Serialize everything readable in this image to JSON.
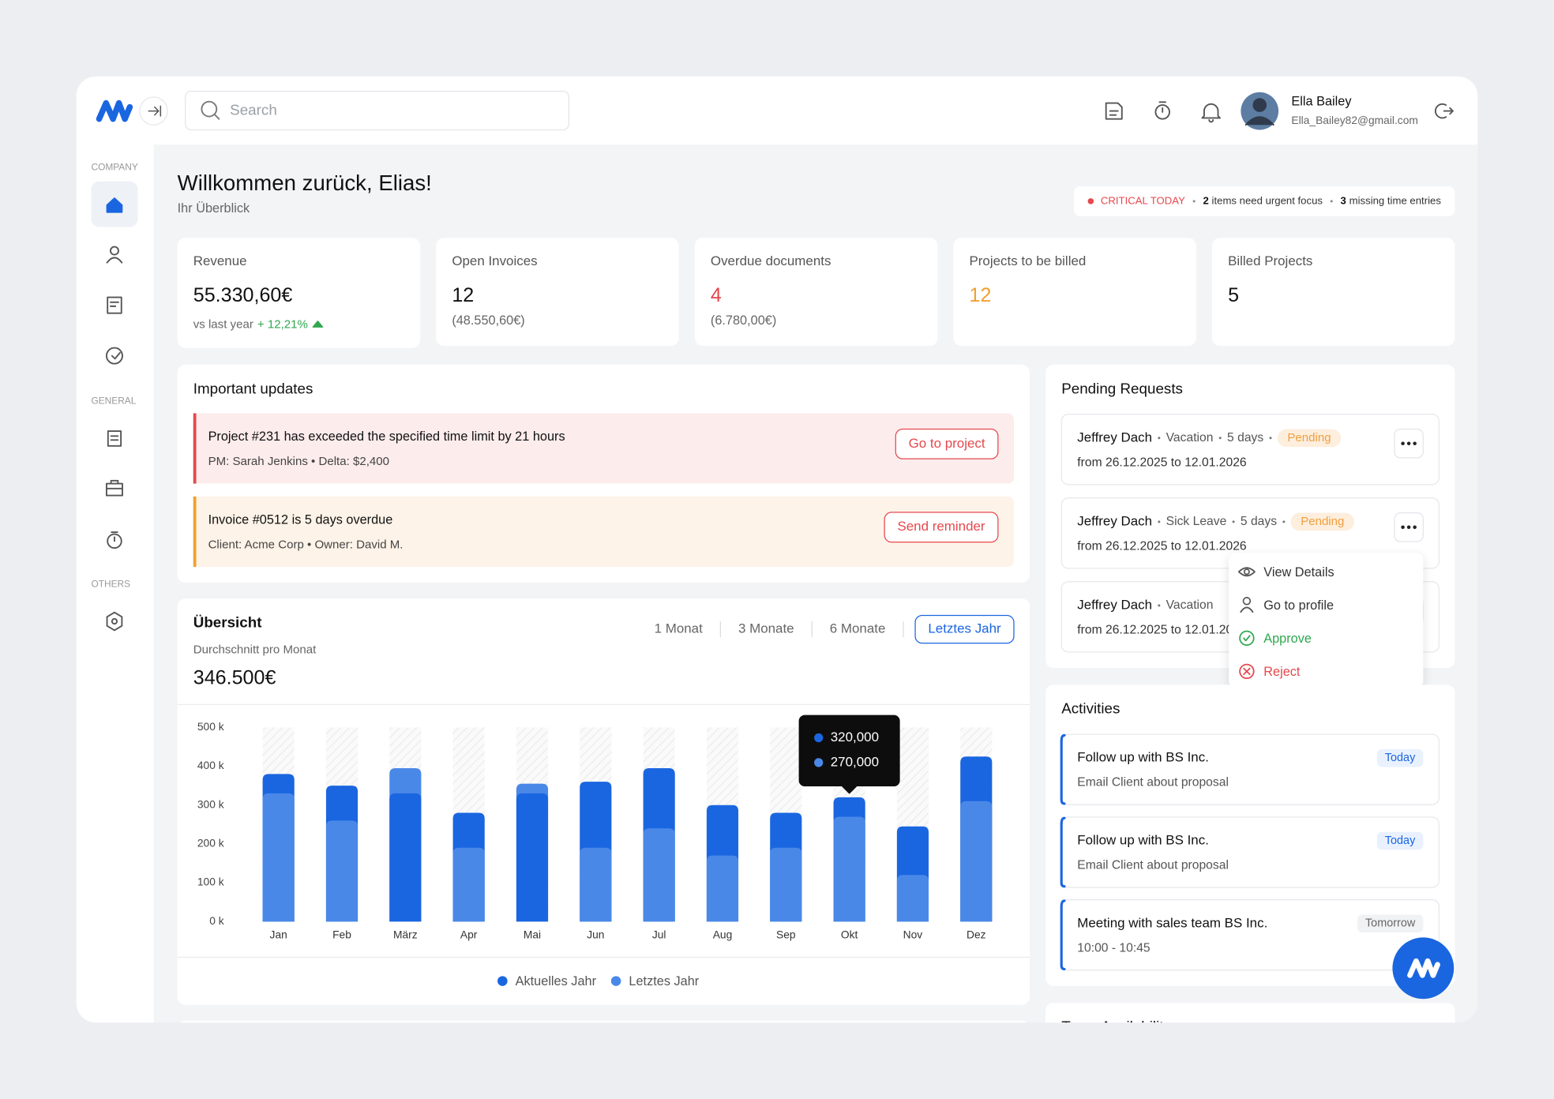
{
  "header": {
    "search_placeholder": "Search",
    "user": {
      "name": "Ella Bailey",
      "email": "Ella_Bailey82@gmail.com"
    }
  },
  "sidebar": {
    "sections": [
      "COMPANY",
      "GENERAL",
      "OTHERS"
    ]
  },
  "welcome": {
    "title": "Willkommen zurück, Elias!",
    "subtitle": "Ihr Überblick"
  },
  "alert_bar": {
    "label": "CRITICAL TODAY",
    "urgent_count": "2",
    "urgent_text": "items need urgent focus",
    "missing_count": "3",
    "missing_text": "missing time entries"
  },
  "kpis": [
    {
      "label": "Revenue",
      "value": "55.330,60€",
      "note": "vs last year",
      "change": "+ 12,21%"
    },
    {
      "label": "Open Invoices",
      "value": "12",
      "sub": "(48.550,60€)"
    },
    {
      "label": "Overdue documents",
      "value": "4",
      "sub": "(6.780,00€)",
      "value_color": "#e5484d"
    },
    {
      "label": "Projects to be billed",
      "value": "12",
      "value_color": "#f0a030"
    },
    {
      "label": "Billed Projects",
      "value": "5"
    }
  ],
  "updates": {
    "title": "Important updates",
    "items": [
      {
        "title": "Project #231 has exceeded the specified time limit by 21 hours",
        "detail": "PM: Sarah Jenkins • Delta: $2,400",
        "action": "Go to project",
        "color": "#e5484d",
        "background": "#fdecec"
      },
      {
        "title": "Invoice #0512 is 5 days overdue",
        "detail": "Client: Acme Corp • Owner: David M.",
        "action": "Send reminder",
        "color": "#f0a030",
        "background": "#fef3e8"
      }
    ]
  },
  "overview": {
    "title": "Übersicht",
    "subtitle": "Durchschnitt pro Monat",
    "value": "346.500€",
    "ranges": [
      {
        "label": "1 Monat"
      },
      {
        "label": "3 Monate"
      },
      {
        "label": "6 Monate"
      },
      {
        "label": "Letztes Jahr",
        "active": true
      }
    ]
  },
  "chart_data": {
    "type": "bar",
    "categories": [
      "Jan",
      "Feb",
      "März",
      "Apr",
      "Mai",
      "Jun",
      "Jul",
      "Aug",
      "Sep",
      "Okt",
      "Nov",
      "Dez"
    ],
    "series": [
      {
        "name": "Aktuelles Jahr",
        "color": "#1a66e0",
        "values": [
          380000,
          350000,
          330000,
          280000,
          330000,
          360000,
          395000,
          300000,
          280000,
          320000,
          245000,
          425000
        ],
        "value_labels": [
          null,
          null,
          null,
          null,
          null,
          null,
          null,
          null,
          null,
          "320,000",
          null,
          null
        ]
      },
      {
        "name": "Letztes Jahr",
        "color": "#4a88e8",
        "values": [
          330000,
          260000,
          395000,
          190000,
          355000,
          190000,
          240000,
          170000,
          190000,
          270000,
          120000,
          310000
        ],
        "value_labels": [
          null,
          null,
          null,
          null,
          null,
          null,
          null,
          null,
          null,
          "270,000",
          null,
          null
        ]
      }
    ],
    "ylim": [
      0,
      500000
    ],
    "yticks": [
      {
        "value": 0,
        "label": "0 k"
      },
      {
        "value": 100000,
        "label": "100 k"
      },
      {
        "value": 200000,
        "label": "200 k"
      },
      {
        "value": 300000,
        "label": "300 k"
      },
      {
        "value": 400000,
        "label": "400 k"
      },
      {
        "value": 500000,
        "label": "500 k"
      }
    ],
    "grid": false
  },
  "pending": {
    "title": "Pending Requests",
    "items": [
      {
        "name": "Jeffrey Dach",
        "type": "Vacation",
        "duration": "5 days",
        "status": "Pending",
        "dates": "from 26.12.2025 to 12.01.2026"
      },
      {
        "name": "Jeffrey Dach",
        "type": "Sick Leave",
        "duration": "5 days",
        "status": "Pending",
        "dates": "from 26.12.2025 to 12.01.2026"
      },
      {
        "name": "Jeffrey Dach",
        "type": "Vacation",
        "dates": "from 26.12.2025 to 12.01.2026"
      }
    ],
    "menu": [
      "View Details",
      "Go to profile",
      "Approve",
      "Reject"
    ]
  },
  "activities": {
    "title": "Activities",
    "items": [
      {
        "title": "Follow up with BS Inc.",
        "detail": "Email Client about proposal",
        "when": "Today"
      },
      {
        "title": "Follow up with BS Inc.",
        "detail": "Email Client about proposal",
        "when": "Today"
      },
      {
        "title": "Meeting with sales team BS Inc.",
        "detail": "10:00 - 10:45",
        "when": "Tomorrow"
      }
    ]
  },
  "team": {
    "title": "Team Availability"
  }
}
